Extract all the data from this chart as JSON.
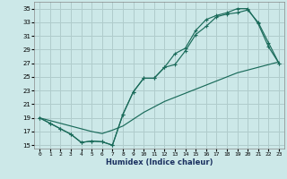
{
  "xlabel": "Humidex (Indice chaleur)",
  "bg_color": "#cce8e8",
  "grid_color": "#b0cccc",
  "line_color": "#1a6b5a",
  "xlim": [
    -0.5,
    23.5
  ],
  "ylim": [
    14.5,
    36
  ],
  "xticks": [
    0,
    1,
    2,
    3,
    4,
    5,
    6,
    7,
    8,
    9,
    10,
    11,
    12,
    13,
    14,
    15,
    16,
    17,
    18,
    19,
    20,
    21,
    22,
    23
  ],
  "yticks": [
    15,
    17,
    19,
    21,
    23,
    25,
    27,
    29,
    31,
    33,
    35
  ],
  "line1_x": [
    0,
    1,
    2,
    3,
    4,
    5,
    6,
    7,
    8,
    9,
    10,
    11,
    12,
    13,
    14,
    15,
    16,
    17,
    18,
    19,
    20,
    21,
    22,
    23
  ],
  "line1_y": [
    19,
    18.2,
    17.4,
    16.6,
    15.4,
    15.6,
    15.5,
    15.0,
    19.5,
    22.8,
    24.8,
    24.8,
    26.4,
    28.4,
    29.2,
    31.8,
    33.4,
    34.0,
    34.4,
    35.0,
    35.0,
    32.8,
    29.4,
    27.0
  ],
  "line2_x": [
    0,
    1,
    2,
    3,
    4,
    5,
    6,
    7,
    8,
    9,
    10,
    11,
    12,
    13,
    14,
    15,
    16,
    17,
    18,
    19,
    20,
    21,
    22,
    23
  ],
  "line2_y": [
    19,
    18.2,
    17.4,
    16.6,
    15.4,
    15.6,
    15.5,
    15.0,
    19.5,
    22.8,
    24.8,
    24.8,
    26.4,
    26.8,
    28.8,
    31.2,
    32.4,
    33.8,
    34.2,
    34.4,
    34.8,
    33.0,
    30.0,
    27.0
  ],
  "line3_x": [
    0,
    1,
    2,
    3,
    4,
    5,
    6,
    7,
    8,
    9,
    10,
    11,
    12,
    13,
    14,
    15,
    16,
    17,
    18,
    19,
    20,
    21,
    22,
    23
  ],
  "line3_y": [
    19,
    18.6,
    18.2,
    17.8,
    17.4,
    17.0,
    16.7,
    17.2,
    17.8,
    18.8,
    19.8,
    20.6,
    21.4,
    22.0,
    22.6,
    23.2,
    23.8,
    24.4,
    25.0,
    25.6,
    26.0,
    26.4,
    26.8,
    27.2
  ]
}
